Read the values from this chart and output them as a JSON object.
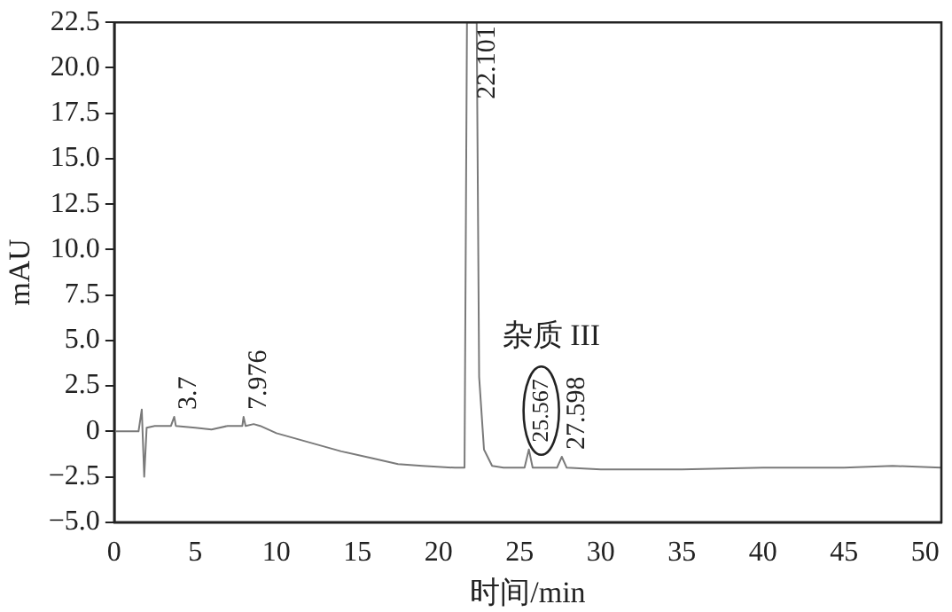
{
  "chart_data": {
    "type": "line",
    "xlabel": "时间/min",
    "ylabel": "mAU",
    "xlim": [
      0,
      51
    ],
    "xticks": [
      0,
      5,
      10,
      15,
      20,
      25,
      30,
      35,
      40,
      45,
      50
    ],
    "ylim": [
      -5.0,
      22.5
    ],
    "yticks": [
      {
        "value": -5,
        "label": "−5.0"
      },
      {
        "value": -2.5,
        "label": "−2.5"
      },
      0,
      {
        "value": 2.5,
        "label": "2.5"
      },
      {
        "value": 5,
        "label": "5.0"
      },
      {
        "value": 7.5,
        "label": "7.5"
      },
      {
        "value": 10,
        "label": "10.0"
      },
      {
        "value": 12.5,
        "label": "12.5"
      },
      {
        "value": 15,
        "label": "15.0"
      },
      {
        "value": 17.5,
        "label": "17.5"
      },
      {
        "value": 20,
        "label": "20.0"
      },
      {
        "value": 22.5,
        "label": "22.5"
      }
    ],
    "grid": false,
    "legend": false,
    "marker": "none",
    "line_style": "solid",
    "series": [
      {
        "color": "#7a7a7a",
        "x": [
          0,
          1.5,
          1.7,
          1.85,
          2.0,
          2.5,
          3.5,
          3.7,
          3.8,
          5,
          6,
          7,
          7.9,
          7.976,
          8.1,
          8.6,
          9,
          10,
          12,
          14,
          16,
          17.5,
          19,
          21,
          21.6,
          21.75,
          22.0,
          22.35,
          22.5,
          22.8,
          23.3,
          24,
          25.3,
          25.567,
          25.8,
          27.3,
          27.598,
          27.9,
          30,
          35,
          40,
          45,
          48,
          51
        ],
        "values": [
          0,
          0,
          1.2,
          -2.5,
          0.2,
          0.3,
          0.3,
          0.8,
          0.3,
          0.2,
          0.1,
          0.3,
          0.3,
          0.8,
          0.3,
          0.4,
          0.3,
          -0.1,
          -0.6,
          -1.1,
          -1.5,
          -1.8,
          -1.9,
          -2.0,
          -2.0,
          22.5,
          22.5,
          22.5,
          3,
          -1,
          -1.9,
          -2.0,
          -2.0,
          -1.0,
          -2.0,
          -2.0,
          -1.4,
          -2.0,
          -2.1,
          -2.1,
          -2.0,
          -2.0,
          -1.9,
          -2.0
        ]
      }
    ],
    "annotations": [
      {
        "text": "3.7",
        "x": 3.7,
        "y": 0.8
      },
      {
        "text": "7.976",
        "x": 7.976,
        "y": 0.8
      },
      {
        "text": "22.101",
        "x": 22.101,
        "y": 22.5
      },
      {
        "text": "25.567",
        "x": 25.567,
        "y": -1.0
      },
      {
        "text": "27.598",
        "x": 27.598,
        "y": -1.4
      },
      "杂质 III"
    ]
  }
}
